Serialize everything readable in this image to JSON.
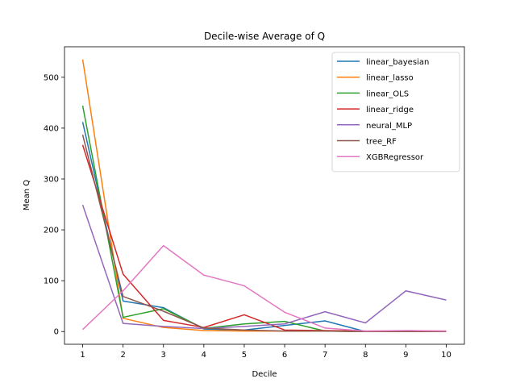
{
  "chart_data": {
    "type": "line",
    "title": "Decile-wise Average of Q",
    "xlabel": "Decile",
    "ylabel": "Mean Q",
    "x": [
      1,
      2,
      3,
      4,
      5,
      6,
      7,
      8,
      9,
      10
    ],
    "xticks": [
      1,
      2,
      3,
      4,
      5,
      6,
      7,
      8,
      9,
      10
    ],
    "yticks": [
      0,
      100,
      200,
      300,
      400,
      500
    ],
    "xlim": [
      0.55,
      10.45
    ],
    "ylim": [
      -25,
      560
    ],
    "grid": false,
    "legend": "top-right",
    "series": [
      {
        "name": "linear_bayesian",
        "color": "#1f77b4",
        "values": [
          412,
          60,
          47,
          5,
          3,
          12,
          21,
          0,
          0,
          0
        ]
      },
      {
        "name": "linear_lasso",
        "color": "#ff7f0e",
        "values": [
          535,
          26,
          8,
          2,
          1,
          1,
          1,
          0,
          0,
          0
        ]
      },
      {
        "name": "linear_OLS",
        "color": "#2ca02c",
        "values": [
          444,
          28,
          45,
          6,
          15,
          20,
          1,
          0,
          0,
          0
        ]
      },
      {
        "name": "linear_ridge",
        "color": "#d62728",
        "values": [
          367,
          113,
          22,
          8,
          33,
          3,
          2,
          1,
          1,
          1
        ]
      },
      {
        "name": "neural_MLP",
        "color": "#9467bd",
        "values": [
          249,
          16,
          10,
          6,
          10,
          15,
          39,
          17,
          80,
          62
        ]
      },
      {
        "name": "tree_RF",
        "color": "#8c564b",
        "values": [
          387,
          69,
          40,
          7,
          3,
          1,
          1,
          0,
          0,
          0
        ]
      },
      {
        "name": "XGBRegressor",
        "color": "#e377c2",
        "values": [
          4,
          80,
          169,
          111,
          90,
          38,
          7,
          1,
          2,
          1
        ]
      }
    ]
  }
}
